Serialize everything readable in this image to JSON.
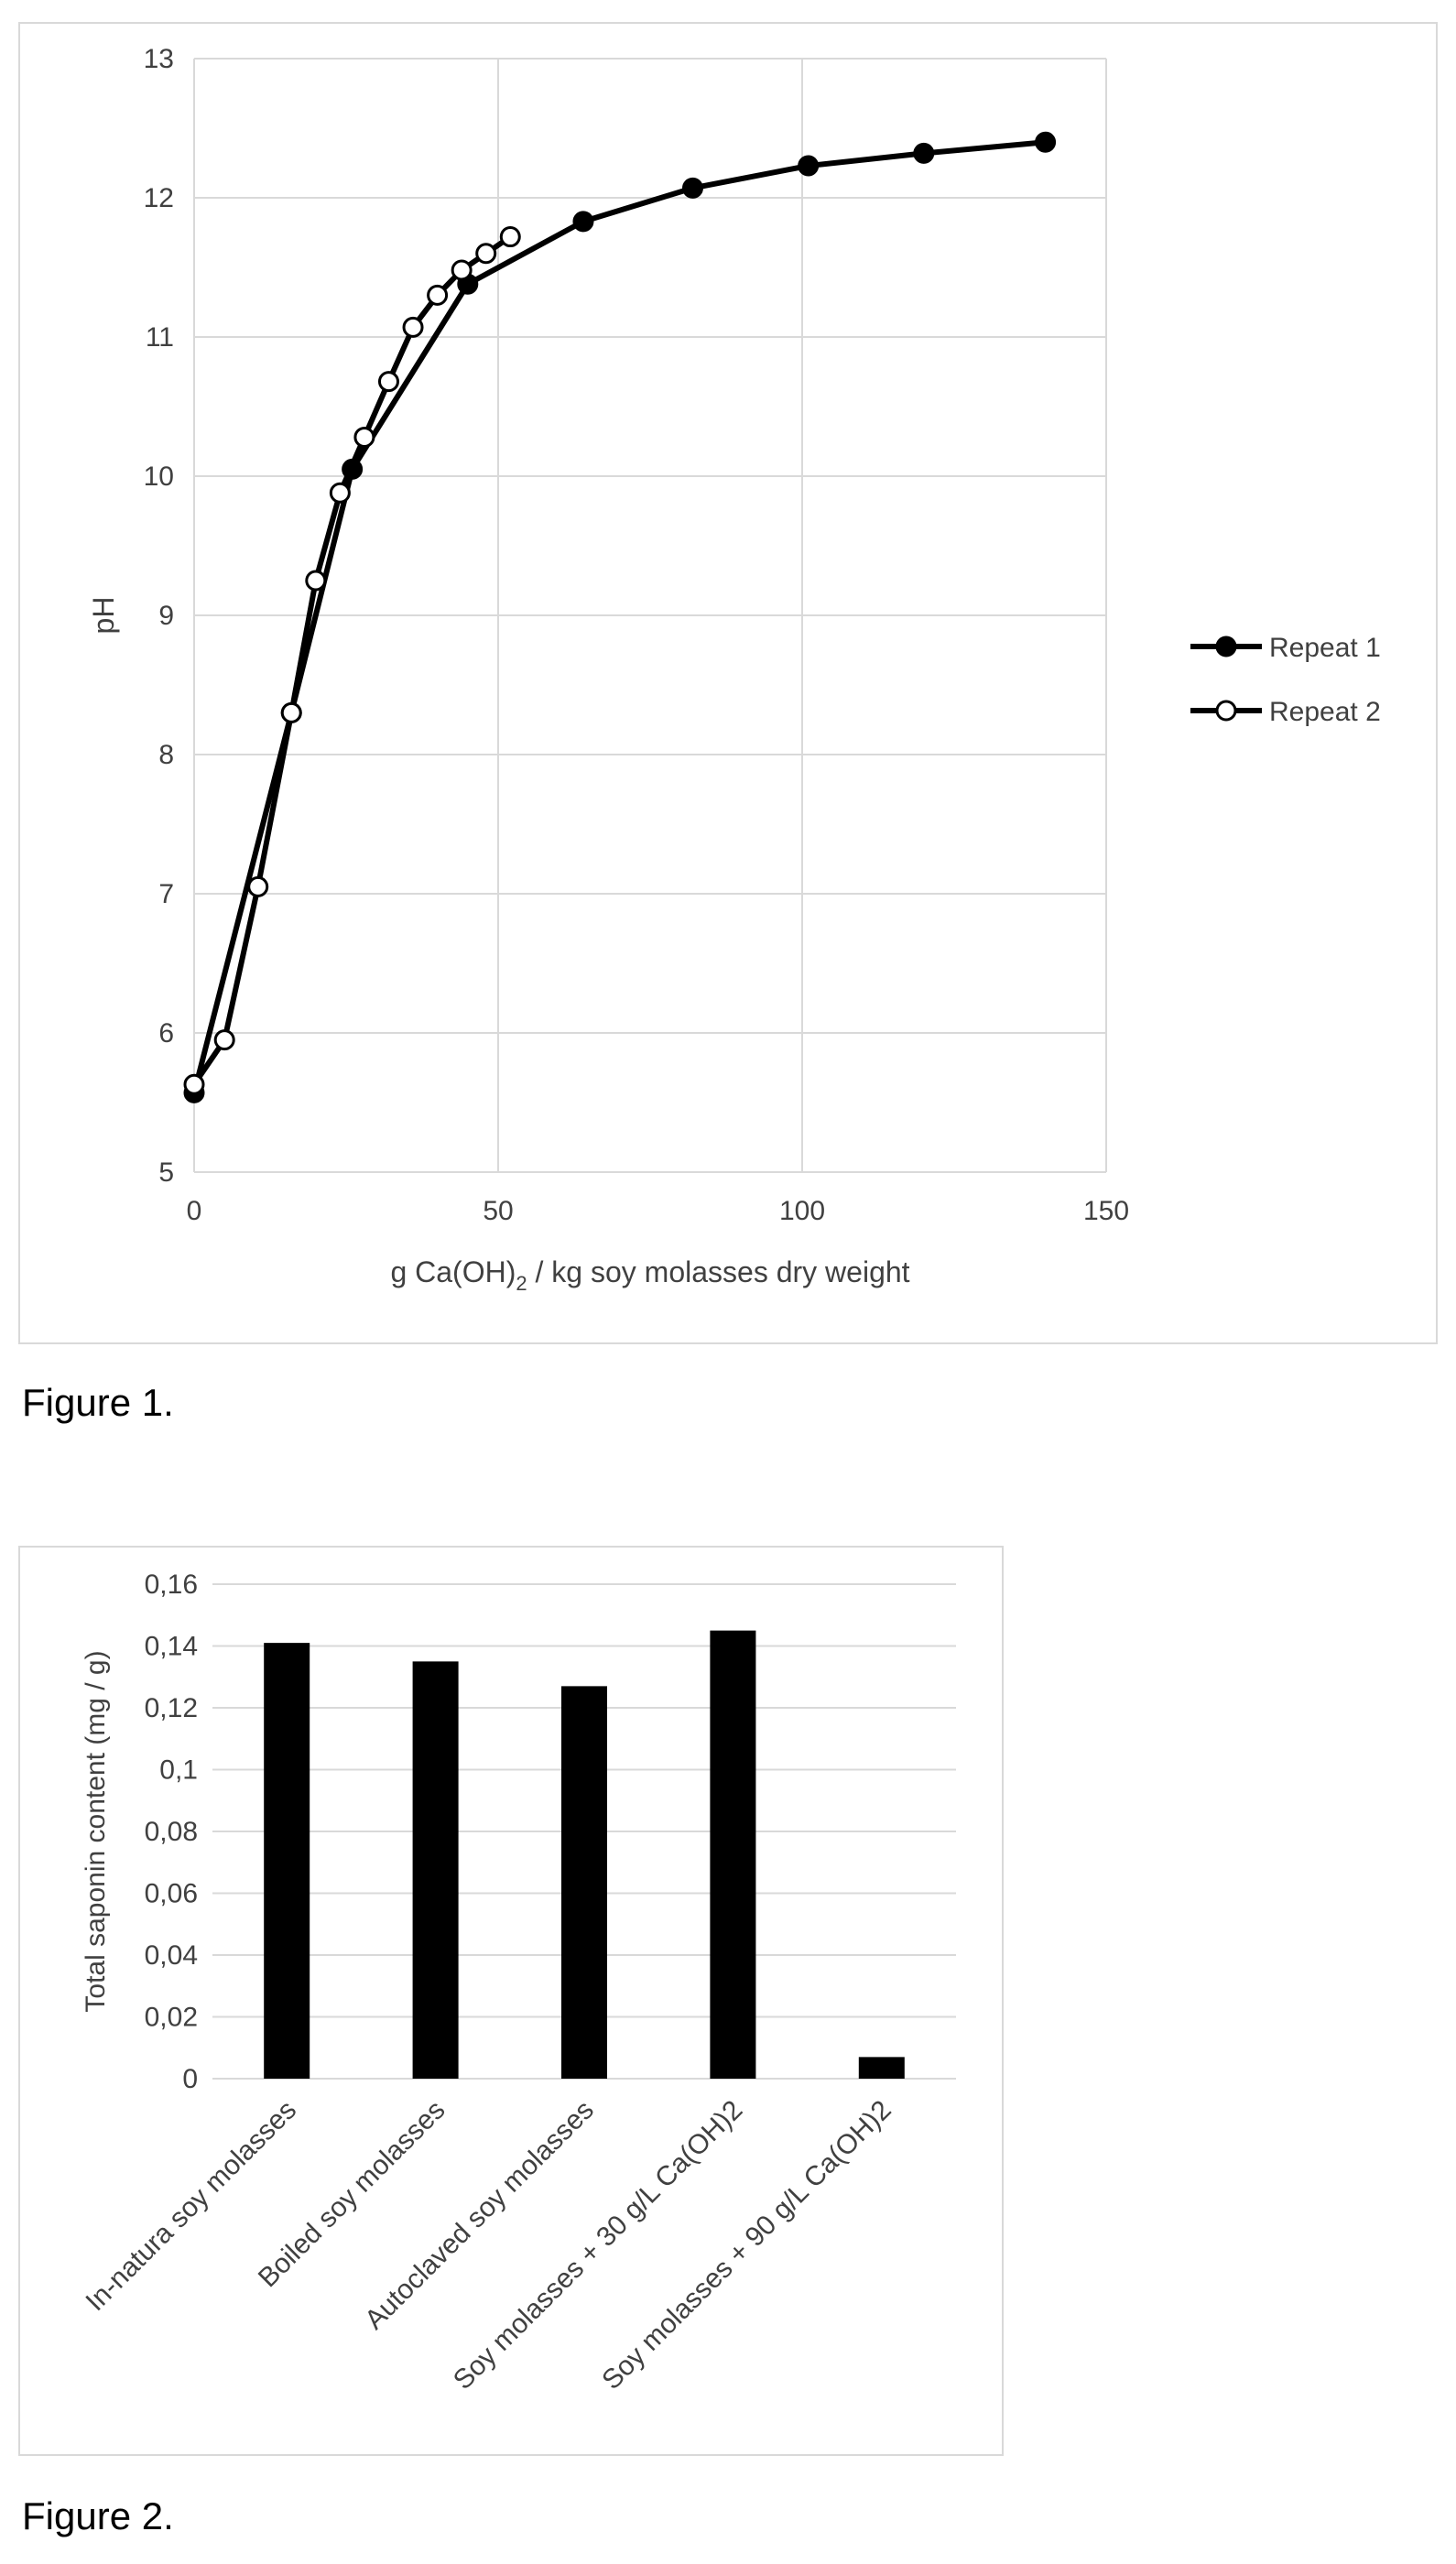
{
  "figures": [
    {
      "caption": "Figure 1.",
      "chart_data": {
        "type": "line",
        "xlabel_prefix": "g Ca(OH)",
        "xlabel_sub": "2",
        "xlabel_suffix": " / kg soy molasses dry weight",
        "ylabel": "pH",
        "xlim": [
          0,
          150
        ],
        "ylim": [
          5,
          13
        ],
        "xticks": [
          "0",
          "50",
          "100",
          "150"
        ],
        "yticks": [
          "5",
          "6",
          "7",
          "8",
          "9",
          "10",
          "11",
          "12",
          "13"
        ],
        "grid": true,
        "legend": "right",
        "series": [
          {
            "name": "Repeat 1",
            "marker": "filled",
            "color": "#000000",
            "x": [
              0,
              16,
              26,
              45,
              64,
              82,
              101,
              120,
              140
            ],
            "y": [
              5.57,
              8.3,
              10.05,
              11.38,
              11.83,
              12.07,
              12.23,
              12.32,
              12.4
            ]
          },
          {
            "name": "Repeat 2",
            "marker": "hollow",
            "color": "#000000",
            "x": [
              0,
              5,
              10.5,
              16,
              20,
              24,
              28,
              32,
              36,
              40,
              44,
              48,
              52
            ],
            "y": [
              5.63,
              5.95,
              7.05,
              8.3,
              9.25,
              9.88,
              10.28,
              10.68,
              11.07,
              11.3,
              11.48,
              11.6,
              11.72
            ]
          }
        ]
      }
    },
    {
      "caption": "Figure 2.",
      "chart_data": {
        "type": "bar",
        "ylabel": "Total saponin content (mg / g)",
        "ylim": [
          0,
          0.16
        ],
        "yticks": [
          "0",
          "0,02",
          "0,04",
          "0,06",
          "0,08",
          "0,1",
          "0,12",
          "0,14",
          "0,16"
        ],
        "grid": true,
        "bar_color": "#000000",
        "categories": [
          "In-natura soy molasses",
          "Boiled soy molasses",
          "Autoclaved soy molasses",
          "Soy molasses + 30 g/L Ca(OH)2",
          "Soy molasses + 90 g/L Ca(OH)2"
        ],
        "values": [
          0.141,
          0.135,
          0.127,
          0.145,
          0.007
        ]
      }
    }
  ]
}
